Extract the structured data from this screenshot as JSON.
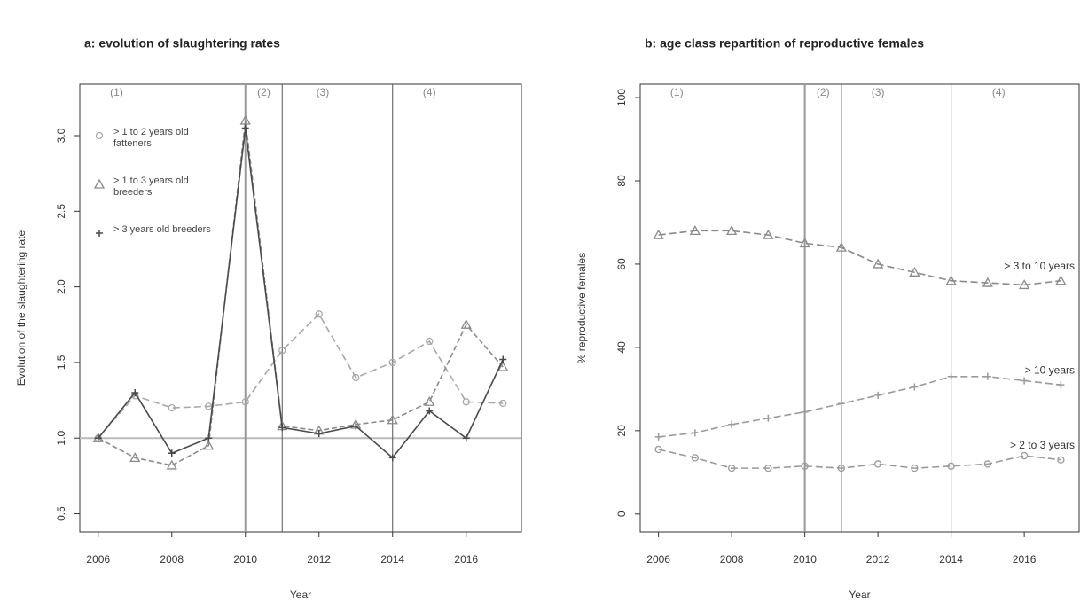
{
  "chart_data": [
    {
      "type": "line",
      "title": "a: evolution of slaughtering rates",
      "xlabel": "Year",
      "ylabel": "Evolution of the slaughtering rate",
      "x": [
        2006,
        2007,
        2008,
        2009,
        2010,
        2011,
        2012,
        2013,
        2014,
        2015,
        2016,
        2017
      ],
      "series": [
        {
          "name": "> 1 to 2 years old fatteners",
          "color": "#a8a8a8",
          "marker": "circle",
          "dash": "8 4",
          "values": [
            1.0,
            1.28,
            1.2,
            1.21,
            1.24,
            1.58,
            1.82,
            1.4,
            1.5,
            1.64,
            1.24,
            1.23
          ]
        },
        {
          "name": "> 1 to 3 years old breeders",
          "color": "#8a8a8a",
          "marker": "triangle",
          "dash": "6 3",
          "values": [
            1.0,
            0.87,
            0.82,
            0.95,
            3.1,
            1.08,
            1.05,
            1.09,
            1.12,
            1.24,
            1.75,
            1.47
          ]
        },
        {
          "name": "> 3 years old breeders",
          "color": "#4a4a4a",
          "marker": "plus",
          "dash": "none",
          "values": [
            1.0,
            1.3,
            0.9,
            1.0,
            3.05,
            1.07,
            1.03,
            1.08,
            0.87,
            1.18,
            1.0,
            1.52
          ]
        }
      ],
      "xlim": [
        2005.5,
        2017.5
      ],
      "ylim": [
        0.38,
        3.34
      ],
      "xticks": [
        2006,
        2008,
        2010,
        2012,
        2014,
        2016
      ],
      "yticks": [
        0.5,
        {
          "value": 1,
          "label": "1.0"
        },
        1.5,
        {
          "value": 2,
          "label": "2.0"
        },
        2.5,
        {
          "value": 3,
          "label": "3.0"
        }
      ],
      "reference_line": 1,
      "vlines": [
        2010,
        2011,
        2014
      ],
      "annotations": [
        {
          "text": "(1)",
          "x": 2006.5
        },
        {
          "text": "(2)",
          "x": 2010.5
        },
        {
          "text": "(3)",
          "x": 2012.1
        },
        {
          "text": "(4)",
          "x": 2015
        }
      ],
      "legend": "upper left"
    },
    {
      "type": "line",
      "title": "b: age class repartition of reproductive females",
      "xlabel": "Year",
      "ylabel": "% reproductive females",
      "x": [
        2006,
        2007,
        2008,
        2009,
        2010,
        2011,
        2012,
        2013,
        2014,
        2015,
        2016,
        2017
      ],
      "series": [
        {
          "name": "> 3 to 10 years",
          "color": "#8a8a8a",
          "marker": "triangle",
          "dash": "8 4",
          "values": [
            67,
            68,
            68,
            67,
            65,
            64,
            60,
            58,
            56,
            55.5,
            55,
            56
          ]
        },
        {
          "name": "> 10 years",
          "color": "#9a9a9a",
          "marker": "plus",
          "dash": "8 4",
          "values": [
            18.5,
            19.5,
            21.5,
            23,
            24.5,
            26.5,
            28.5,
            30.5,
            33,
            33,
            32,
            31
          ]
        },
        {
          "name": "> 2 to 3 years",
          "color": "#9a9a9a",
          "marker": "circle",
          "dash": "8 4",
          "values": [
            15.5,
            13.5,
            11,
            11,
            11.5,
            11,
            12,
            11,
            11.5,
            12,
            14,
            13
          ]
        }
      ],
      "xlim": [
        2005.5,
        2017.5
      ],
      "ylim": [
        -4.3,
        103.2
      ],
      "xticks": [
        2006,
        2008,
        2010,
        2012,
        2014,
        2016
      ],
      "yticks": [
        0,
        20,
        40,
        60,
        80,
        100
      ],
      "vlines": [
        2010,
        2011,
        2014
      ],
      "annotations": [
        {
          "text": "(1)",
          "x": 2006.5
        },
        {
          "text": "(2)",
          "x": 2010.5
        },
        {
          "text": "(3)",
          "x": 2012
        },
        {
          "text": "(4)",
          "x": 2015.3
        }
      ],
      "legend": "inline"
    }
  ]
}
